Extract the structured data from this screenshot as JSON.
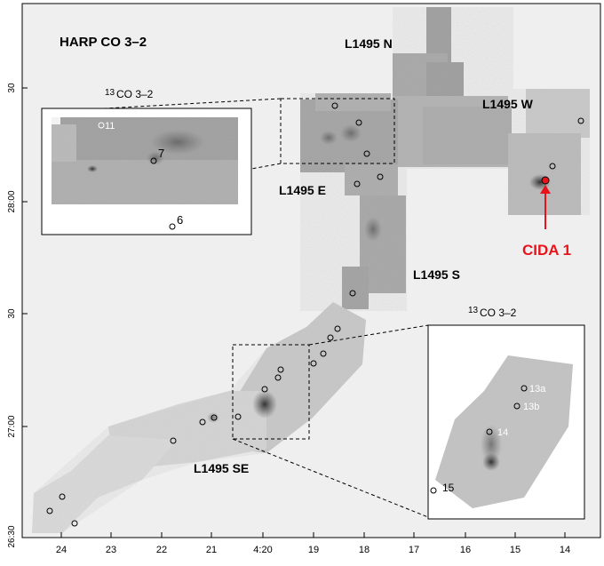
{
  "title": "HARP CO 3–2",
  "region_labels": {
    "n": "L1495 N",
    "w": "L1495 W",
    "e": "L1495 E",
    "s": "L1495 S",
    "se": "L1495 SE"
  },
  "source_label": "CIDA 1",
  "inset_top": {
    "isotope_sup": "13",
    "label": "CO 3–2",
    "sources": [
      "11",
      "7",
      "6"
    ]
  },
  "inset_bottom": {
    "isotope_sup": "13",
    "label": "CO 3–2",
    "sources": [
      "13a",
      "13b",
      "14",
      "15"
    ]
  },
  "dec_ticks": [
    "30",
    "28:00",
    "30",
    "27:00",
    "26:30"
  ],
  "ra_ticks": [
    "24",
    "23",
    "22",
    "21",
    "4:20",
    "19",
    "18",
    "17",
    "16",
    "15",
    "14"
  ],
  "colors": {
    "highlight": "#e8141c",
    "frame": "#000000",
    "map_bg": "#efefef"
  }
}
